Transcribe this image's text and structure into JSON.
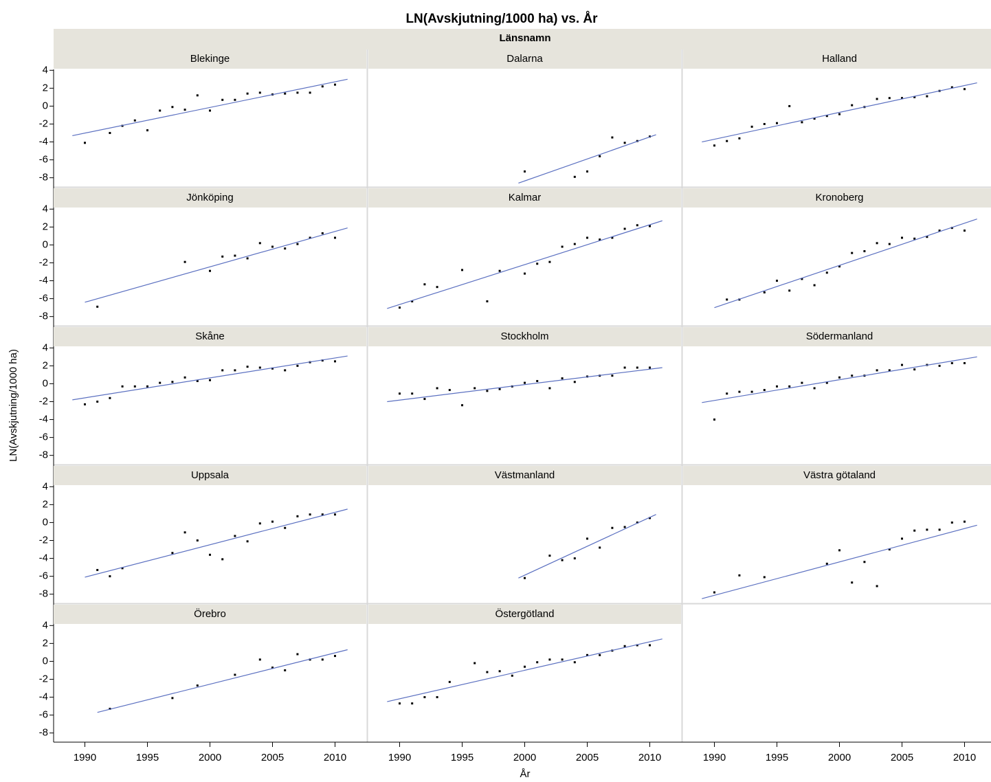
{
  "chart_data": {
    "type": "scatter",
    "title": "LN(Avskjutning/1000 ha) vs. År",
    "facet_label": "Länsnamn",
    "x_label": "År",
    "y_label": "LN(Avskjutning/1000 ha)",
    "xlim": [
      1987.5,
      2012.5
    ],
    "ylim": [
      -9.1,
      4.1
    ],
    "xticks": [
      1990,
      1995,
      2000,
      2005,
      2010
    ],
    "yticks": [
      -8,
      -6,
      -4,
      -2,
      0,
      2,
      4
    ],
    "point_color": "#000000",
    "fit_color": "#5a6fc0",
    "panels": [
      {
        "name": "Blekinge",
        "x": [
          1990,
          1992,
          1993,
          1994,
          1995,
          1996,
          1997,
          1998,
          1999,
          2000,
          2001,
          2002,
          2003,
          2004,
          2005,
          2006,
          2007,
          2008,
          2009,
          2010
        ],
        "values": [
          -4.1,
          -3.0,
          -2.2,
          -1.6,
          -2.7,
          -0.5,
          -0.1,
          -0.4,
          1.2,
          -0.5,
          0.7,
          0.7,
          1.4,
          1.5,
          1.3,
          1.4,
          1.5,
          1.5,
          2.2,
          2.4
        ],
        "fit": {
          "x": [
            1989,
            2011
          ],
          "values": [
            -3.3,
            3.0
          ]
        }
      },
      {
        "name": "Dalarna",
        "x": [
          2000,
          2004,
          2005,
          2006,
          2007,
          2008,
          2009,
          2010
        ],
        "values": [
          -7.3,
          -7.9,
          -7.3,
          -5.6,
          -3.5,
          -4.1,
          -3.9,
          -3.4
        ],
        "fit": {
          "x": [
            1999.5,
            2010.5
          ],
          "values": [
            -8.6,
            -3.2
          ]
        }
      },
      {
        "name": "Halland",
        "x": [
          1990,
          1991,
          1992,
          1993,
          1994,
          1995,
          1996,
          1997,
          1998,
          1999,
          2000,
          2001,
          2002,
          2003,
          2004,
          2005,
          2006,
          2007,
          2008,
          2009,
          2010
        ],
        "values": [
          -4.4,
          -3.9,
          -3.6,
          -2.3,
          -2.0,
          -1.9,
          0.0,
          -1.8,
          -1.4,
          -1.1,
          -0.9,
          0.1,
          -0.1,
          0.8,
          0.9,
          0.9,
          1.0,
          1.1,
          1.7,
          2.1,
          1.9
        ],
        "fit": {
          "x": [
            1989,
            2011
          ],
          "values": [
            -4.0,
            2.6
          ]
        }
      },
      {
        "name": "Jönköping",
        "x": [
          1991,
          1998,
          2000,
          2001,
          2002,
          2003,
          2004,
          2005,
          2006,
          2007,
          2008,
          2009,
          2010
        ],
        "values": [
          -6.9,
          -1.9,
          -2.9,
          -1.3,
          -1.2,
          -1.5,
          0.2,
          -0.2,
          -0.4,
          0.1,
          0.8,
          1.3,
          0.8
        ],
        "fit": {
          "x": [
            1990,
            2011
          ],
          "values": [
            -6.4,
            1.9
          ]
        }
      },
      {
        "name": "Kalmar",
        "x": [
          1990,
          1991,
          1992,
          1993,
          1995,
          1997,
          1998,
          2000,
          2001,
          2002,
          2003,
          2004,
          2005,
          2006,
          2007,
          2008,
          2009,
          2010
        ],
        "values": [
          -7.0,
          -6.3,
          -4.4,
          -4.7,
          -2.8,
          -6.3,
          -2.9,
          -3.2,
          -2.1,
          -1.9,
          -0.2,
          0.1,
          0.8,
          0.6,
          0.8,
          1.8,
          2.2,
          2.1
        ],
        "fit": {
          "x": [
            1989,
            2011
          ],
          "values": [
            -7.1,
            2.7
          ]
        }
      },
      {
        "name": "Kronoberg",
        "x": [
          1991,
          1992,
          1994,
          1995,
          1996,
          1997,
          1998,
          1999,
          2000,
          2001,
          2002,
          2003,
          2004,
          2005,
          2006,
          2007,
          2008,
          2009,
          2010
        ],
        "values": [
          -6.1,
          -6.1,
          -5.3,
          -4.0,
          -5.1,
          -3.8,
          -4.5,
          -3.1,
          -2.4,
          -0.9,
          -0.7,
          0.2,
          0.1,
          0.8,
          0.7,
          0.9,
          1.6,
          1.9,
          1.6
        ],
        "fit": {
          "x": [
            1990,
            2011
          ],
          "values": [
            -7.0,
            2.9
          ]
        }
      },
      {
        "name": "Skåne",
        "x": [
          1990,
          1991,
          1992,
          1993,
          1994,
          1995,
          1996,
          1997,
          1998,
          1999,
          2000,
          2001,
          2002,
          2003,
          2004,
          2005,
          2006,
          2007,
          2008,
          2009,
          2010
        ],
        "values": [
          -2.3,
          -2.0,
          -1.6,
          -0.3,
          -0.3,
          -0.3,
          0.1,
          0.2,
          0.7,
          0.3,
          0.4,
          1.5,
          1.5,
          1.9,
          1.8,
          1.7,
          1.5,
          2.0,
          2.4,
          2.6,
          2.5
        ],
        "fit": {
          "x": [
            1989,
            2011
          ],
          "values": [
            -1.8,
            3.1
          ]
        }
      },
      {
        "name": "Stockholm",
        "x": [
          1990,
          1991,
          1992,
          1993,
          1994,
          1995,
          1996,
          1997,
          1998,
          1999,
          2000,
          2001,
          2002,
          2003,
          2004,
          2005,
          2006,
          2007,
          2008,
          2009,
          2010
        ],
        "values": [
          -1.1,
          -1.1,
          -1.7,
          -0.5,
          -0.7,
          -2.4,
          -0.5,
          -0.8,
          -0.6,
          -0.3,
          0.1,
          0.3,
          -0.5,
          0.6,
          0.2,
          0.8,
          0.9,
          0.9,
          1.8,
          1.8,
          1.8
        ],
        "fit": {
          "x": [
            1989,
            2011
          ],
          "values": [
            -2.0,
            1.8
          ]
        }
      },
      {
        "name": "Södermanland",
        "x": [
          1990,
          1991,
          1992,
          1993,
          1994,
          1995,
          1996,
          1997,
          1998,
          1999,
          2000,
          2001,
          2002,
          2003,
          2004,
          2005,
          2006,
          2007,
          2008,
          2009,
          2010
        ],
        "values": [
          -4.0,
          -1.1,
          -0.9,
          -0.9,
          -0.7,
          -0.3,
          -0.3,
          0.1,
          -0.5,
          0.1,
          0.7,
          0.9,
          0.9,
          1.5,
          1.5,
          2.1,
          1.6,
          2.1,
          2.0,
          2.3,
          2.3
        ],
        "fit": {
          "x": [
            1989,
            2011
          ],
          "values": [
            -2.1,
            3.0
          ]
        }
      },
      {
        "name": "Uppsala",
        "x": [
          1991,
          1992,
          1993,
          1997,
          1998,
          1999,
          2000,
          2001,
          2002,
          2003,
          2004,
          2005,
          2006,
          2007,
          2008,
          2009,
          2010
        ],
        "values": [
          -5.3,
          -6.0,
          -5.1,
          -3.4,
          -1.1,
          -2.0,
          -3.6,
          -4.1,
          -1.5,
          -2.1,
          -0.1,
          0.1,
          -0.6,
          0.7,
          0.9,
          0.9,
          0.9
        ],
        "fit": {
          "x": [
            1990,
            2011
          ],
          "values": [
            -6.1,
            1.5
          ]
        }
      },
      {
        "name": "Västmanland",
        "x": [
          2000,
          2002,
          2003,
          2004,
          2005,
          2006,
          2007,
          2008,
          2009,
          2010
        ],
        "values": [
          -6.2,
          -3.7,
          -4.2,
          -4.0,
          -1.8,
          -2.8,
          -0.6,
          -0.5,
          0.0,
          0.5
        ],
        "fit": {
          "x": [
            1999.5,
            2010.5
          ],
          "values": [
            -6.2,
            0.9
          ]
        }
      },
      {
        "name": "Västra götaland",
        "x": [
          1990,
          1992,
          1994,
          1999,
          2000,
          2001,
          2002,
          2003,
          2004,
          2005,
          2006,
          2007,
          2008,
          2009,
          2010
        ],
        "values": [
          -7.8,
          -5.9,
          -6.1,
          -4.6,
          -3.1,
          -6.7,
          -4.4,
          -7.1,
          -3.0,
          -1.8,
          -0.9,
          -0.8,
          -0.8,
          0.0,
          0.1
        ],
        "fit": {
          "x": [
            1989,
            2011
          ],
          "values": [
            -8.5,
            -0.3
          ]
        }
      },
      {
        "name": "Örebro",
        "x": [
          1992,
          1997,
          1999,
          2002,
          2004,
          2005,
          2006,
          2007,
          2008,
          2009,
          2010
        ],
        "values": [
          -5.3,
          -4.1,
          -2.7,
          -1.5,
          0.2,
          -0.7,
          -1.0,
          0.8,
          0.2,
          0.2,
          0.6
        ],
        "fit": {
          "x": [
            1991,
            2011
          ],
          "values": [
            -5.7,
            1.3
          ]
        }
      },
      {
        "name": "Östergötland",
        "x": [
          1990,
          1991,
          1992,
          1993,
          1994,
          1996,
          1997,
          1998,
          1999,
          2000,
          2001,
          2002,
          2003,
          2004,
          2005,
          2006,
          2007,
          2008,
          2009,
          2010
        ],
        "values": [
          -4.7,
          -4.7,
          -4.0,
          -4.0,
          -2.3,
          -0.2,
          -1.2,
          -1.1,
          -1.6,
          -0.6,
          -0.1,
          0.2,
          0.2,
          -0.1,
          0.7,
          0.7,
          1.2,
          1.7,
          1.8,
          1.8
        ],
        "fit": {
          "x": [
            1989,
            2011
          ],
          "values": [
            -4.5,
            2.5
          ]
        }
      }
    ]
  }
}
